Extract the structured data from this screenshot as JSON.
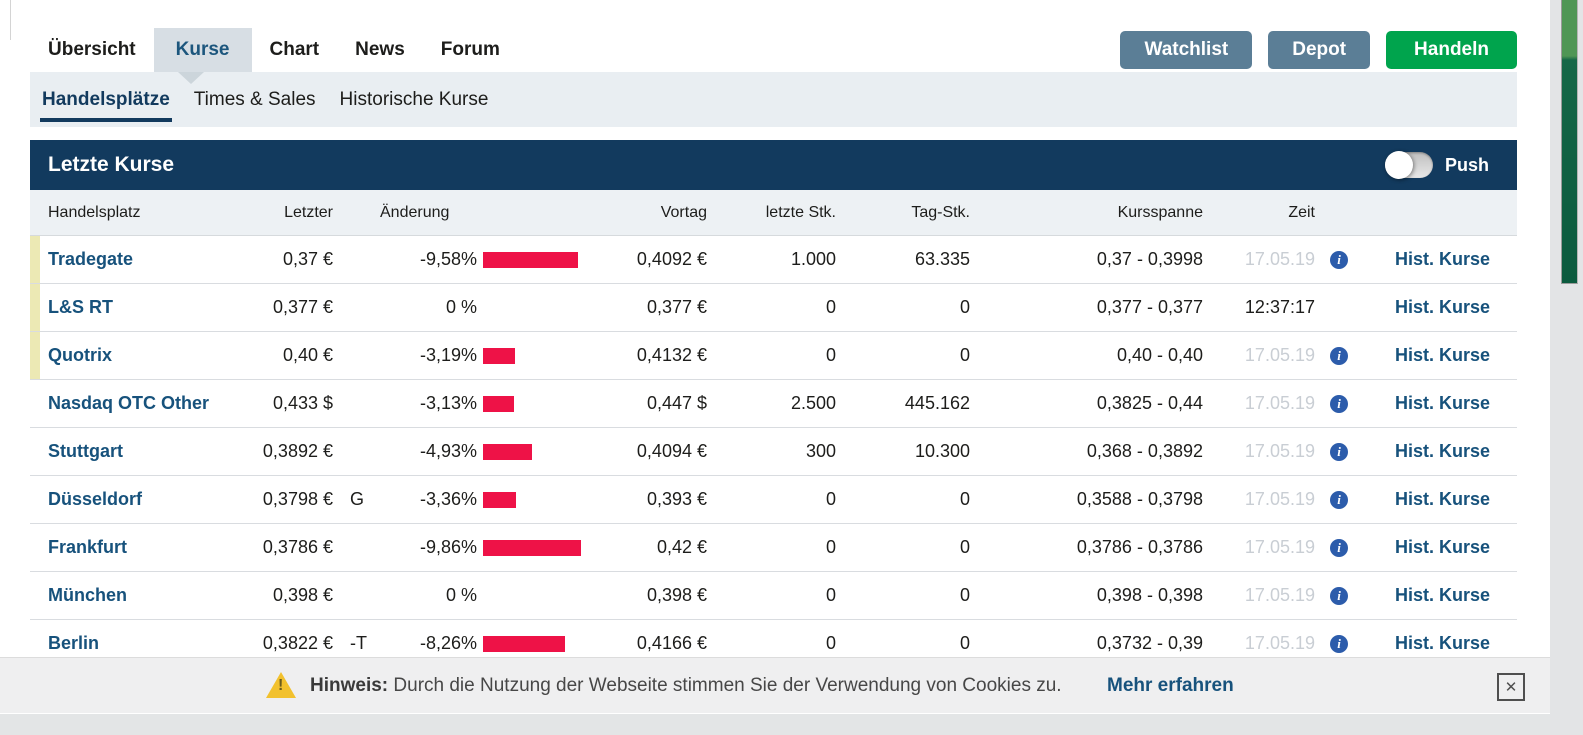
{
  "nav": {
    "tabs": [
      {
        "label": "Übersicht",
        "active": false
      },
      {
        "label": "Kurse",
        "active": true
      },
      {
        "label": "Chart",
        "active": false
      },
      {
        "label": "News",
        "active": false
      },
      {
        "label": "Forum",
        "active": false
      }
    ],
    "buttons": [
      {
        "label": "Watchlist",
        "style": "slate"
      },
      {
        "label": "Depot",
        "style": "slate"
      },
      {
        "label": "Handeln",
        "style": "green"
      }
    ]
  },
  "subnav": {
    "items": [
      {
        "label": "Handelsplätze",
        "active": true
      },
      {
        "label": "Times & Sales",
        "active": false
      },
      {
        "label": "Historische Kurse",
        "active": false
      }
    ]
  },
  "panel": {
    "title": "Letzte Kurse",
    "push_label": "Push",
    "push_on": false
  },
  "table": {
    "columns": {
      "handelsplatz": "Handelsplatz",
      "letzter": "Letzter",
      "aenderung": "Änderung",
      "vortag": "Vortag",
      "letzte_stk": "letzte Stk.",
      "tag_stk": "Tag-Stk.",
      "kursspanne": "Kursspanne",
      "zeit": "Zeit"
    },
    "hist_label": "Hist. Kurse",
    "rows": [
      {
        "name": "Tradegate",
        "marker": true,
        "last": "0,37 €",
        "suffix": "",
        "change": "-9,58%",
        "vortag": "0,4092 €",
        "letzte_stk": "1.000",
        "tag_stk": "63.335",
        "spanne": "0,37 - 0,3998",
        "zeit": "17.05.19",
        "zeit_muted": true,
        "info": true
      },
      {
        "name": "L&S RT",
        "marker": true,
        "last": "0,377 €",
        "suffix": "",
        "change": "0 %",
        "vortag": "0,377 €",
        "letzte_stk": "0",
        "tag_stk": "0",
        "spanne": "0,377 - 0,377",
        "zeit": "12:37:17",
        "zeit_muted": false,
        "info": false
      },
      {
        "name": "Quotrix",
        "marker": true,
        "last": "0,40 €",
        "suffix": "",
        "change": "-3,19%",
        "vortag": "0,4132 €",
        "letzte_stk": "0",
        "tag_stk": "0",
        "spanne": "0,40 - 0,40",
        "zeit": "17.05.19",
        "zeit_muted": true,
        "info": true
      },
      {
        "name": "Nasdaq OTC Other",
        "marker": false,
        "last": "0,433 $",
        "suffix": "",
        "change": "-3,13%",
        "vortag": "0,447 $",
        "letzte_stk": "2.500",
        "tag_stk": "445.162",
        "spanne": "0,3825 - 0,44",
        "zeit": "17.05.19",
        "zeit_muted": true,
        "info": true
      },
      {
        "name": "Stuttgart",
        "marker": false,
        "last": "0,3892 €",
        "suffix": "",
        "change": "-4,93%",
        "vortag": "0,4094 €",
        "letzte_stk": "300",
        "tag_stk": "10.300",
        "spanne": "0,368 - 0,3892",
        "zeit": "17.05.19",
        "zeit_muted": true,
        "info": true
      },
      {
        "name": "Düsseldorf",
        "marker": false,
        "last": "0,3798 €",
        "suffix": "G",
        "change": "-3,36%",
        "vortag": "0,393 €",
        "letzte_stk": "0",
        "tag_stk": "0",
        "spanne": "0,3588 - 0,3798",
        "zeit": "17.05.19",
        "zeit_muted": true,
        "info": true
      },
      {
        "name": "Frankfurt",
        "marker": false,
        "last": "0,3786 €",
        "suffix": "",
        "change": "-9,86%",
        "vortag": "0,42 €",
        "letzte_stk": "0",
        "tag_stk": "0",
        "spanne": "0,3786 - 0,3786",
        "zeit": "17.05.19",
        "zeit_muted": true,
        "info": true
      },
      {
        "name": "München",
        "marker": false,
        "last": "0,398 €",
        "suffix": "",
        "change": "0 %",
        "vortag": "0,398 €",
        "letzte_stk": "0",
        "tag_stk": "0",
        "spanne": "0,398 - 0,398",
        "zeit": "17.05.19",
        "zeit_muted": true,
        "info": true
      },
      {
        "name": "Berlin",
        "marker": false,
        "last": "0,3822 €",
        "suffix": "-T",
        "change": "-8,26%",
        "vortag": "0,4166 €",
        "letzte_stk": "0",
        "tag_stk": "0",
        "spanne": "0,3732 - 0,39",
        "zeit": "17.05.19",
        "zeit_muted": true,
        "info": true
      }
    ]
  },
  "cookie": {
    "prefix": "Hinweis:",
    "message": "Durch die Nutzung der Webseite stimmen Sie der Verwendung von Cookies zu.",
    "link": "Mehr erfahren",
    "close": "✕"
  },
  "colors": {
    "navy": "#123a5e",
    "link_blue": "#17527c",
    "change_red": "#ee1247",
    "action_green": "#00a44d",
    "button_slate": "#5b7e96",
    "row_marker_yellow": "#ece9b4",
    "info_blue": "#2c5cab",
    "muted_date_gray": "#c9ced4"
  }
}
